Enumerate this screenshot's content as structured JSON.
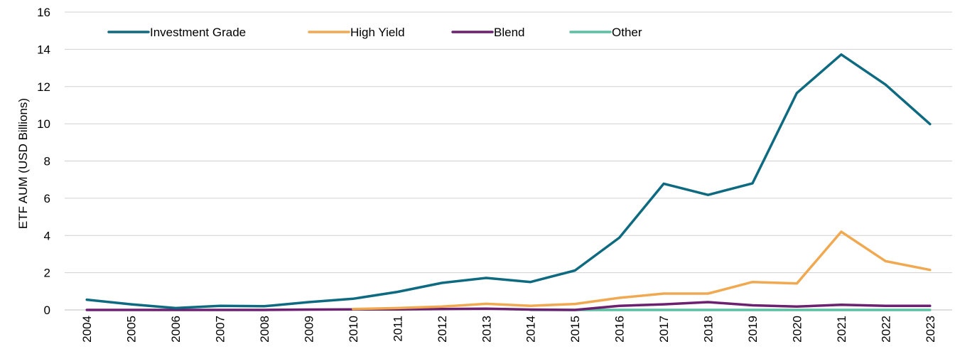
{
  "chart_data": {
    "type": "line",
    "title": "",
    "xlabel": "",
    "ylabel": "ETF AUM (USD Billions)",
    "ylim": [
      0,
      16
    ],
    "yticks": [
      0,
      2,
      4,
      6,
      8,
      10,
      12,
      14,
      16
    ],
    "grid": true,
    "legend_position": "top-left",
    "categories": [
      "2004",
      "2005",
      "2006",
      "2007",
      "2008",
      "2009",
      "2010",
      "2011",
      "2012",
      "2013",
      "2014",
      "2015",
      "2016",
      "2017",
      "2018",
      "2019",
      "2020",
      "2021",
      "2022",
      "2023"
    ],
    "series": [
      {
        "name": "Investment Grade",
        "color": "#0e6a80",
        "values": [
          0.55,
          0.3,
          0.1,
          0.22,
          0.2,
          0.42,
          0.6,
          0.97,
          1.45,
          1.72,
          1.5,
          2.12,
          3.88,
          6.78,
          6.18,
          6.8,
          11.65,
          13.72,
          12.1,
          9.98
        ]
      },
      {
        "name": "High Yield",
        "color": "#f0a951",
        "values": [
          null,
          null,
          null,
          null,
          null,
          null,
          0.05,
          0.1,
          0.18,
          0.33,
          0.22,
          0.32,
          0.65,
          0.88,
          0.88,
          1.5,
          1.42,
          4.2,
          2.62,
          2.15
        ]
      },
      {
        "name": "Blend",
        "color": "#6b2070",
        "values": [
          0.0,
          0.0,
          0.0,
          0.0,
          0.0,
          0.02,
          0.03,
          0.03,
          0.05,
          0.07,
          0.02,
          0.0,
          0.22,
          0.3,
          0.42,
          0.25,
          0.18,
          0.28,
          0.22,
          0.22
        ]
      },
      {
        "name": "Other",
        "color": "#5bbfa2",
        "values": [
          null,
          null,
          null,
          null,
          null,
          null,
          null,
          null,
          null,
          null,
          0.0,
          0.0,
          0.0,
          0.0,
          0.0,
          0.0,
          0.0,
          0.0,
          0.0,
          0.0
        ]
      }
    ]
  }
}
